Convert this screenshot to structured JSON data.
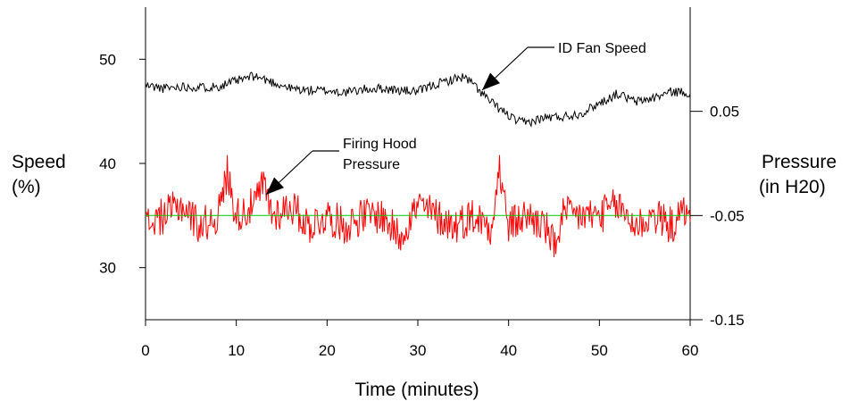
{
  "chart_data": {
    "type": "line",
    "xlabel": "Time (minutes)",
    "xlim": [
      0,
      60
    ],
    "x_ticks": [
      0,
      10,
      20,
      30,
      40,
      50,
      60
    ],
    "ylabel_left": [
      "Speed",
      "(%)"
    ],
    "ylim_left": [
      25,
      55
    ],
    "y_ticks_left": [
      30,
      40,
      50
    ],
    "ylabel_right": [
      "Pressure",
      "(in H20)"
    ],
    "ylim_right": [
      -0.15,
      0.15
    ],
    "y_ticks_right": [
      "0.05",
      "-0.05",
      "-0.15"
    ],
    "grid": false,
    "series": [
      {
        "name": "ID Fan Speed",
        "axis": "left",
        "color": "#000000",
        "x": [
          0,
          2,
          4,
          6,
          8,
          10,
          12,
          14,
          16,
          18,
          20,
          22,
          24,
          26,
          28,
          30,
          32,
          34,
          35,
          36,
          37,
          38,
          40,
          41,
          42,
          44,
          46,
          48,
          50,
          52,
          54,
          56,
          58,
          60
        ],
        "y": [
          47.5,
          47.2,
          47.4,
          47.3,
          47.4,
          47.9,
          48.4,
          47.8,
          47.2,
          47.0,
          47.0,
          46.8,
          47.1,
          47.2,
          47.0,
          46.9,
          47.6,
          48.1,
          48.3,
          47.7,
          46.8,
          45.9,
          44.6,
          44.0,
          43.9,
          44.4,
          44.5,
          44.8,
          45.8,
          46.7,
          45.9,
          46.3,
          46.9,
          46.8
        ]
      },
      {
        "name": "Firing Hood Pressure",
        "axis": "right",
        "color": "#ff0000",
        "x": [
          0,
          2,
          4,
          6,
          8,
          9,
          10,
          12,
          13,
          14,
          16,
          18,
          20,
          22,
          24,
          26,
          28,
          30,
          32,
          34,
          36,
          38,
          39,
          40,
          42,
          44,
          45,
          46,
          48,
          50,
          52,
          54,
          56,
          58,
          60
        ],
        "y": [
          -0.06,
          -0.05,
          -0.04,
          -0.06,
          -0.05,
          -0.01,
          -0.05,
          -0.04,
          -0.02,
          -0.05,
          -0.04,
          -0.06,
          -0.05,
          -0.06,
          -0.05,
          -0.05,
          -0.07,
          -0.04,
          -0.05,
          -0.06,
          -0.05,
          -0.06,
          -0.01,
          -0.06,
          -0.05,
          -0.06,
          -0.08,
          -0.05,
          -0.05,
          -0.05,
          -0.04,
          -0.06,
          -0.05,
          -0.06,
          -0.04
        ]
      },
      {
        "axis": "right",
        "color": "#00cc00",
        "x": [
          0,
          60
        ],
        "y": [
          -0.05,
          -0.05
        ]
      }
    ],
    "annotations": [
      {
        "text": "ID Fan Speed",
        "lines": [
          "ID Fan Speed"
        ],
        "points_to": "ID Fan Speed"
      },
      {
        "text": "Firing Hood Pressure",
        "lines": [
          "Firing Hood",
          "Pressure"
        ],
        "points_to": "Firing Hood Pressure"
      }
    ]
  }
}
